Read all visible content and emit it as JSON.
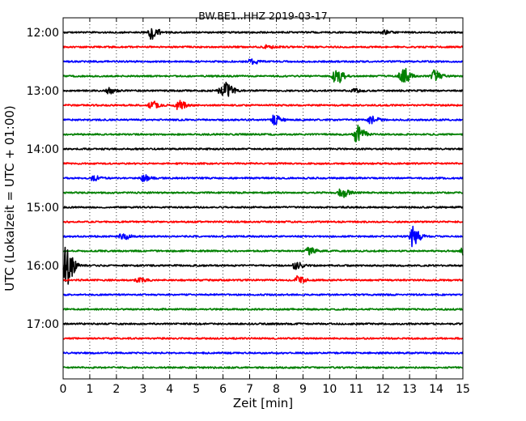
{
  "chart_data": {
    "type": "line",
    "title": "BW.BE1..HHZ 2019-03-17",
    "xlabel": "Zeit  [min]",
    "ylabel": "UTC (Lokalzeit = UTC + 01:00)",
    "xlim": [
      0,
      15
    ],
    "x_ticks": [
      "0",
      "1",
      "2",
      "3",
      "4",
      "5",
      "6",
      "7",
      "8",
      "9",
      "10",
      "11",
      "12",
      "13",
      "14",
      "15"
    ],
    "y_ticks": [
      "12:00",
      "13:00",
      "14:00",
      "15:00",
      "16:00",
      "17:00"
    ],
    "grid": "vertical dotted",
    "colors": [
      "#000000",
      "#ff0000",
      "#0000ff",
      "#008000"
    ],
    "traces": [
      {
        "start": "12:00",
        "color": "#000000",
        "events": [
          [
            3.3,
            1.0
          ],
          [
            12.0,
            0.3
          ]
        ]
      },
      {
        "start": "12:15",
        "color": "#ff0000",
        "events": [
          [
            7.6,
            0.25
          ]
        ]
      },
      {
        "start": "12:30",
        "color": "#0000ff",
        "events": [
          [
            7.0,
            0.5
          ]
        ]
      },
      {
        "start": "12:45",
        "color": "#008000",
        "events": [
          [
            10.2,
            1.3
          ],
          [
            12.7,
            1.4
          ],
          [
            13.9,
            0.9
          ]
        ]
      },
      {
        "start": "13:00",
        "color": "#000000",
        "events": [
          [
            1.7,
            0.4
          ],
          [
            5.9,
            0.6
          ],
          [
            6.1,
            0.9
          ],
          [
            10.9,
            0.35
          ]
        ]
      },
      {
        "start": "13:15",
        "color": "#ff0000",
        "events": [
          [
            3.3,
            0.6
          ],
          [
            4.3,
            0.7
          ]
        ]
      },
      {
        "start": "13:30",
        "color": "#0000ff",
        "events": [
          [
            7.9,
            0.7
          ],
          [
            11.5,
            0.6
          ]
        ]
      },
      {
        "start": "13:45",
        "color": "#008000",
        "events": [
          [
            11.0,
            1.4
          ]
        ]
      },
      {
        "start": "14:00",
        "color": "#000000",
        "events": []
      },
      {
        "start": "14:15",
        "color": "#ff0000",
        "events": []
      },
      {
        "start": "14:30",
        "color": "#0000ff",
        "events": [
          [
            1.1,
            0.35
          ],
          [
            3.0,
            0.45
          ]
        ]
      },
      {
        "start": "14:45",
        "color": "#008000",
        "events": [
          [
            10.4,
            0.9
          ]
        ]
      },
      {
        "start": "15:00",
        "color": "#000000",
        "events": []
      },
      {
        "start": "15:15",
        "color": "#ff0000",
        "events": []
      },
      {
        "start": "15:30",
        "color": "#0000ff",
        "events": [
          [
            2.2,
            0.5
          ],
          [
            13.1,
            1.6
          ]
        ]
      },
      {
        "start": "15:45",
        "color": "#008000",
        "events": [
          [
            9.2,
            0.5
          ],
          [
            15.0,
            0.6
          ]
        ]
      },
      {
        "start": "16:00",
        "color": "#000000",
        "events": [
          [
            0.1,
            3.0
          ],
          [
            8.7,
            0.5
          ]
        ]
      },
      {
        "start": "16:15",
        "color": "#ff0000",
        "events": [
          [
            2.8,
            0.3
          ],
          [
            8.8,
            0.6
          ]
        ]
      },
      {
        "start": "16:30",
        "color": "#0000ff",
        "events": []
      },
      {
        "start": "16:45",
        "color": "#008000",
        "events": []
      },
      {
        "start": "17:00",
        "color": "#000000",
        "events": []
      },
      {
        "start": "17:15",
        "color": "#ff0000",
        "events": []
      },
      {
        "start": "17:30",
        "color": "#0000ff",
        "events": []
      },
      {
        "start": "17:45",
        "color": "#008000",
        "events": []
      }
    ]
  }
}
